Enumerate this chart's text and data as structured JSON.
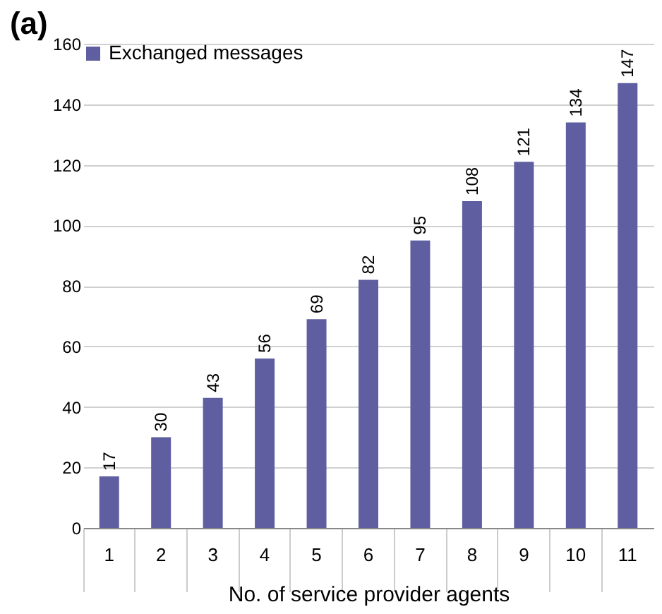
{
  "chart_data": {
    "type": "bar",
    "title": "(a)",
    "xlabel": "No. of service provider agents",
    "categories": [
      "1",
      "2",
      "3",
      "4",
      "5",
      "6",
      "7",
      "8",
      "9",
      "10",
      "11"
    ],
    "series": [
      {
        "name": "Exchanged messages",
        "color": "#5e5ea0",
        "values": [
          17,
          30,
          43,
          56,
          69,
          82,
          95,
          108,
          121,
          134,
          147
        ]
      }
    ],
    "ylim": [
      0,
      160
    ],
    "yticks": [
      0,
      20,
      40,
      60,
      80,
      100,
      120,
      140,
      160
    ],
    "grid": "y",
    "legend": "top left",
    "data_labels": true
  }
}
